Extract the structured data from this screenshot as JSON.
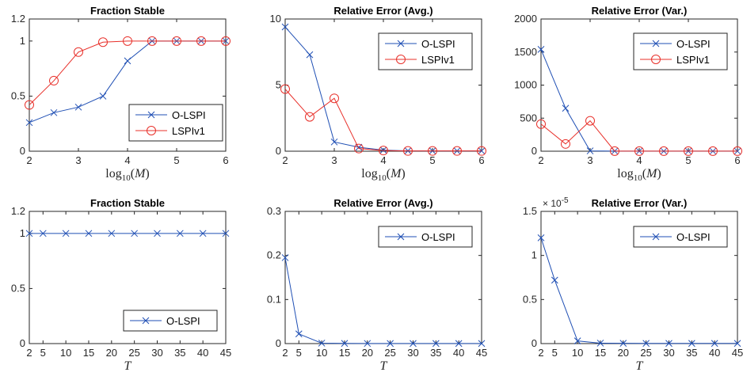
{
  "colors": {
    "blue": "#1f4fb4",
    "red": "#e8302a",
    "axis": "#262626"
  },
  "chart_data": [
    {
      "type": "line",
      "title": "Fraction Stable",
      "xlabel": "log10(M)",
      "x": [
        2,
        2.5,
        3,
        3.5,
        4,
        4.5,
        5,
        5.5,
        6
      ],
      "xlim": [
        2,
        6
      ],
      "xticks": [
        2,
        3,
        4,
        5,
        6
      ],
      "ylim": [
        0,
        1.2
      ],
      "yticks": [
        0,
        0.5,
        1,
        1.2
      ],
      "ytick_labels": [
        "0",
        "0.5",
        "1",
        "1.2"
      ],
      "legend_position": "bottom-right",
      "series": [
        {
          "name": "O-LSPI",
          "color": "#1f4fb4",
          "marker": "x",
          "values": [
            0.26,
            0.35,
            0.4,
            0.5,
            0.82,
            1.0,
            1.0,
            1.0,
            1.0
          ]
        },
        {
          "name": "LSPIv1",
          "color": "#e8302a",
          "marker": "o",
          "values": [
            0.42,
            0.64,
            0.9,
            0.99,
            1.0,
            1.0,
            1.0,
            1.0,
            1.0
          ]
        }
      ]
    },
    {
      "type": "line",
      "title": "Relative Error (Avg.)",
      "xlabel": "log10(M)",
      "x": [
        2,
        2.5,
        3,
        3.5,
        4,
        4.5,
        5,
        5.5,
        6
      ],
      "xlim": [
        2,
        6
      ],
      "xticks": [
        2,
        3,
        4,
        5,
        6
      ],
      "ylim": [
        0,
        10
      ],
      "yticks": [
        0,
        5,
        10
      ],
      "ytick_labels": [
        "0",
        "5",
        "10"
      ],
      "legend_position": "top-right",
      "series": [
        {
          "name": "O-LSPI",
          "color": "#1f4fb4",
          "marker": "x",
          "values": [
            9.4,
            7.3,
            0.7,
            0.3,
            0.08,
            0.03,
            0.02,
            0.02,
            0.02
          ]
        },
        {
          "name": "LSPIv1",
          "color": "#e8302a",
          "marker": "o",
          "values": [
            4.7,
            2.6,
            4.0,
            0.2,
            0.05,
            0.02,
            0.02,
            0.02,
            0.02
          ]
        }
      ]
    },
    {
      "type": "line",
      "title": "Relative Error (Var.)",
      "xlabel": "log10(M)",
      "x": [
        2,
        2.5,
        3,
        3.5,
        4,
        4.5,
        5,
        5.5,
        6
      ],
      "xlim": [
        2,
        6
      ],
      "xticks": [
        2,
        3,
        4,
        5,
        6
      ],
      "ylim": [
        0,
        2000
      ],
      "yticks": [
        0,
        500,
        1000,
        1500,
        2000
      ],
      "ytick_labels": [
        "0",
        "500",
        "1000",
        "1500",
        "2000"
      ],
      "legend_position": "top-right",
      "series": [
        {
          "name": "O-LSPI",
          "color": "#1f4fb4",
          "marker": "x",
          "values": [
            1540,
            650,
            5,
            2,
            1,
            1,
            1,
            1,
            1
          ]
        },
        {
          "name": "LSPIv1",
          "color": "#e8302a",
          "marker": "o",
          "values": [
            410,
            110,
            460,
            2,
            1,
            1,
            1,
            1,
            1
          ]
        }
      ]
    },
    {
      "type": "line",
      "title": "Fraction Stable",
      "xlabel": "T",
      "x": [
        2,
        5,
        10,
        15,
        20,
        25,
        30,
        35,
        40,
        45
      ],
      "xlim": [
        2,
        45
      ],
      "xticks": [
        2,
        5,
        10,
        15,
        20,
        25,
        30,
        35,
        40,
        45
      ],
      "ylim": [
        0,
        1.2
      ],
      "yticks": [
        0,
        0.5,
        1,
        1.2
      ],
      "ytick_labels": [
        "0",
        "0.5",
        "1",
        "1.2"
      ],
      "legend_position": "bottom-right",
      "series": [
        {
          "name": "O-LSPI",
          "color": "#1f4fb4",
          "marker": "x",
          "values": [
            1,
            1,
            1,
            1,
            1,
            1,
            1,
            1,
            1,
            1
          ]
        }
      ]
    },
    {
      "type": "line",
      "title": "Relative Error (Avg.)",
      "xlabel": "T",
      "x": [
        2,
        5,
        10,
        15,
        20,
        25,
        30,
        35,
        40,
        45
      ],
      "xlim": [
        2,
        45
      ],
      "xticks": [
        2,
        5,
        10,
        15,
        20,
        25,
        30,
        35,
        40,
        45
      ],
      "ylim": [
        0,
        0.3
      ],
      "yticks": [
        0,
        0.1,
        0.2,
        0.3
      ],
      "ytick_labels": [
        "0",
        "0.1",
        "0.2",
        "0.3"
      ],
      "legend_position": "top-right",
      "series": [
        {
          "name": "O-LSPI",
          "color": "#1f4fb4",
          "marker": "x",
          "values": [
            0.195,
            0.022,
            0.001,
            0.0005,
            0.0003,
            0.0002,
            0.0002,
            0.0002,
            0.0002,
            0.0002
          ]
        }
      ]
    },
    {
      "type": "line",
      "title": "Relative Error (Var.)",
      "xlabel": "T",
      "x": [
        2,
        5,
        10,
        15,
        20,
        25,
        30,
        35,
        40,
        45
      ],
      "xlim": [
        2,
        45
      ],
      "xticks": [
        2,
        5,
        10,
        15,
        20,
        25,
        30,
        35,
        40,
        45
      ],
      "ylim": [
        0,
        1.5e-05
      ],
      "yticks": [
        0,
        5e-06,
        1e-05,
        1.5e-05
      ],
      "ytick_labels": [
        "0",
        "0.5",
        "1",
        "1.5"
      ],
      "y_exponent_label": "× 10^-5",
      "legend_position": "top-right",
      "series": [
        {
          "name": "O-LSPI",
          "color": "#1f4fb4",
          "marker": "x",
          "values": [
            1.2e-05,
            7.2e-06,
            3e-07,
            5e-08,
            3e-08,
            2e-08,
            2e-08,
            2e-08,
            2e-08,
            2e-08
          ]
        }
      ]
    }
  ]
}
